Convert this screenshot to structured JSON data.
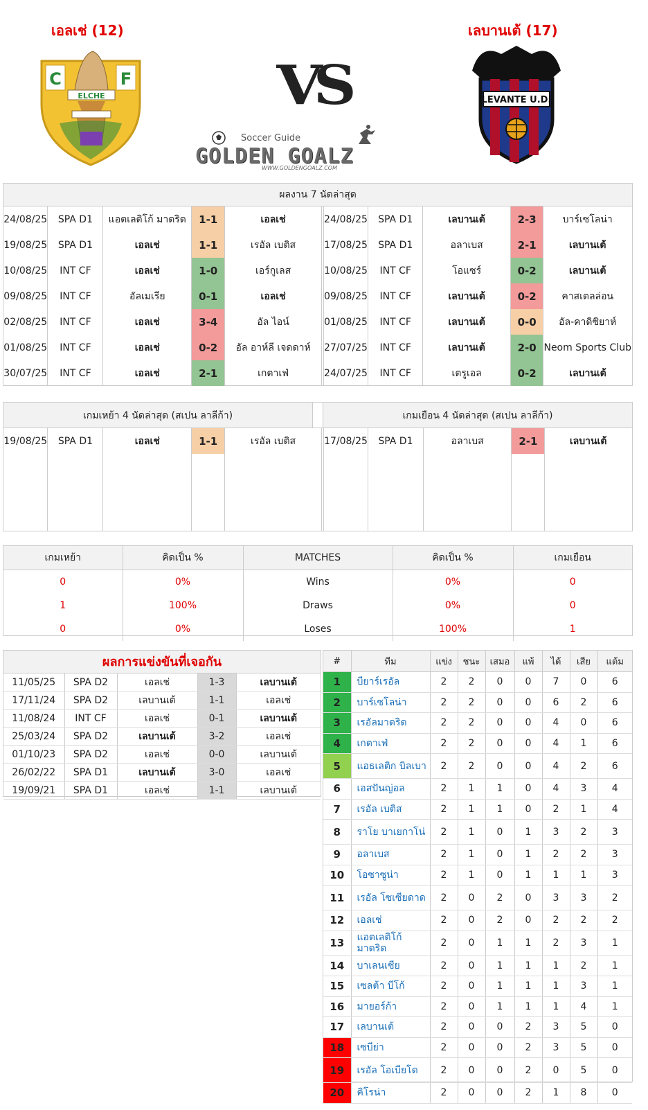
{
  "header": {
    "home_title": "เอลเช่ (12)",
    "away_title": "เลบานเต้ (17)",
    "vs": "VS",
    "brand_top": "Soccer Guide",
    "brand_main": "GOLDEN GOALZ",
    "brand_url": "WWW.GOLDENGOALZ.COM",
    "home_logo_text": "ELCHE",
    "away_logo_text": "LEVANTE U.D."
  },
  "last7": {
    "title": "ผลงาน 7 นัดล่าสุด",
    "home": [
      {
        "date": "24/08/25",
        "comp": "SPA D1",
        "home": "แอตเลติโก้ มาดริด",
        "score": "1-1",
        "away": "เอลเช่",
        "res": "d",
        "hb": false,
        "ab": true
      },
      {
        "date": "19/08/25",
        "comp": "SPA D1",
        "home": "เอลเช่",
        "score": "1-1",
        "away": "เรอัล เบติส",
        "res": "d",
        "hb": true,
        "ab": false
      },
      {
        "date": "10/08/25",
        "comp": "INT CF",
        "home": "เอลเช่",
        "score": "1-0",
        "away": "เอร์กูเลส",
        "res": "w",
        "hb": true,
        "ab": false
      },
      {
        "date": "09/08/25",
        "comp": "INT CF",
        "home": "อัลเมเรีย",
        "score": "0-1",
        "away": "เอลเช่",
        "res": "w",
        "hb": false,
        "ab": true
      },
      {
        "date": "02/08/25",
        "comp": "INT CF",
        "home": "เอลเช่",
        "score": "3-4",
        "away": "อัล ไอน์",
        "res": "l",
        "hb": true,
        "ab": false
      },
      {
        "date": "01/08/25",
        "comp": "INT CF",
        "home": "เอลเช่",
        "score": "0-2",
        "away": "อัล อาห์ลี เจดดาห์",
        "res": "l",
        "hb": true,
        "ab": false
      },
      {
        "date": "30/07/25",
        "comp": "INT CF",
        "home": "เอลเช่",
        "score": "2-1",
        "away": "เกตาเฟ่",
        "res": "w",
        "hb": true,
        "ab": false
      }
    ],
    "away": [
      {
        "date": "24/08/25",
        "comp": "SPA D1",
        "home": "เลบานเต้",
        "score": "2-3",
        "away": "บาร์เซโลน่า",
        "res": "l",
        "hb": true,
        "ab": false
      },
      {
        "date": "17/08/25",
        "comp": "SPA D1",
        "home": "อลาเบส",
        "score": "2-1",
        "away": "เลบานเต้",
        "res": "l",
        "hb": false,
        "ab": true
      },
      {
        "date": "10/08/25",
        "comp": "INT CF",
        "home": "โอแซร์",
        "score": "0-2",
        "away": "เลบานเต้",
        "res": "w",
        "hb": false,
        "ab": true
      },
      {
        "date": "09/08/25",
        "comp": "INT CF",
        "home": "เลบานเต้",
        "score": "0-2",
        "away": "คาสเตลล่อน",
        "res": "l",
        "hb": true,
        "ab": false
      },
      {
        "date": "01/08/25",
        "comp": "INT CF",
        "home": "เลบานเต้",
        "score": "0-0",
        "away": "อัล-คาดิซิยาห์",
        "res": "d",
        "hb": true,
        "ab": false
      },
      {
        "date": "27/07/25",
        "comp": "INT CF",
        "home": "เลบานเต้",
        "score": "2-0",
        "away": "Neom Sports Club",
        "res": "w",
        "hb": true,
        "ab": false
      },
      {
        "date": "24/07/25",
        "comp": "INT CF",
        "home": "เตรูเอล",
        "score": "0-2",
        "away": "เลบานเต้",
        "res": "w",
        "hb": false,
        "ab": true
      }
    ]
  },
  "last4": {
    "home_title": "เกมเหย้า 4 นัดล่าสุด (สเปน ลาลีก้า)",
    "away_title": "เกมเยือน 4 นัดล่าสุด (สเปน ลาลีก้า)",
    "home": [
      {
        "date": "19/08/25",
        "comp": "SPA D1",
        "home": "เอลเช่",
        "score": "1-1",
        "away": "เรอัล เบติส",
        "res": "d",
        "hb": true,
        "ab": false
      }
    ],
    "away": [
      {
        "date": "17/08/25",
        "comp": "SPA D1",
        "home": "อลาเบส",
        "score": "2-1",
        "away": "เลบานเต้",
        "res": "l",
        "hb": false,
        "ab": true
      }
    ]
  },
  "stats": {
    "headers": [
      "เกมเหย้า",
      "คิดเป็น %",
      "MATCHES",
      "คิดเป็น %",
      "เกมเยือน"
    ],
    "rows": [
      {
        "h": "0",
        "hp": "0%",
        "label": "Wins",
        "ap": "0%",
        "a": "0"
      },
      {
        "h": "1",
        "hp": "100%",
        "label": "Draws",
        "ap": "0%",
        "a": "0"
      },
      {
        "h": "0",
        "hp": "0%",
        "label": "Loses",
        "ap": "100%",
        "a": "1"
      }
    ]
  },
  "h2h": {
    "title": "ผลการแข่งขันที่เจอกัน",
    "rows": [
      {
        "date": "11/05/25",
        "comp": "SPA D2",
        "home": "เอลเช่",
        "score": "1-3",
        "away": "เลบานเต้",
        "hb": false,
        "ab": true
      },
      {
        "date": "17/11/24",
        "comp": "SPA D2",
        "home": "เลบานเต้",
        "score": "1-1",
        "away": "เอลเช่",
        "hb": false,
        "ab": false
      },
      {
        "date": "11/08/24",
        "comp": "INT CF",
        "home": "เอลเช่",
        "score": "0-1",
        "away": "เลบานเต้",
        "hb": false,
        "ab": true
      },
      {
        "date": "25/03/24",
        "comp": "SPA D2",
        "home": "เลบานเต้",
        "score": "3-2",
        "away": "เอลเช่",
        "hb": true,
        "ab": false
      },
      {
        "date": "01/10/23",
        "comp": "SPA D2",
        "home": "เอลเช่",
        "score": "0-0",
        "away": "เลบานเต้",
        "hb": false,
        "ab": false
      },
      {
        "date": "26/02/22",
        "comp": "SPA D1",
        "home": "เลบานเต้",
        "score": "3-0",
        "away": "เอลเช่",
        "hb": true,
        "ab": false
      },
      {
        "date": "19/09/21",
        "comp": "SPA D1",
        "home": "เอลเช่",
        "score": "1-1",
        "away": "เลบานเต้",
        "hb": false,
        "ab": false
      }
    ]
  },
  "league": {
    "headers": [
      "#",
      "ทีม",
      "แข่ง",
      "ชนะ",
      "เสมอ",
      "แพ้",
      "ได้",
      "เสีย",
      "แต้ม"
    ],
    "rows": [
      {
        "rank": "1",
        "team": "บียาร์เรอัล",
        "p": "2",
        "w": "2",
        "d": "0",
        "l": "0",
        "gf": "7",
        "ga": "0",
        "pts": "6",
        "zone": "g"
      },
      {
        "rank": "2",
        "team": "บาร์เซโลน่า",
        "p": "2",
        "w": "2",
        "d": "0",
        "l": "0",
        "gf": "6",
        "ga": "2",
        "pts": "6",
        "zone": "g"
      },
      {
        "rank": "3",
        "team": "เรอัลมาดริด",
        "p": "2",
        "w": "2",
        "d": "0",
        "l": "0",
        "gf": "4",
        "ga": "0",
        "pts": "6",
        "zone": "g"
      },
      {
        "rank": "4",
        "team": "เกตาเฟ่",
        "p": "2",
        "w": "2",
        "d": "0",
        "l": "0",
        "gf": "4",
        "ga": "1",
        "pts": "6",
        "zone": "g"
      },
      {
        "rank": "5",
        "team": "แอธเลติก บิลเบา",
        "p": "2",
        "w": "2",
        "d": "0",
        "l": "0",
        "gf": "4",
        "ga": "2",
        "pts": "6",
        "zone": "lg"
      },
      {
        "rank": "6",
        "team": "เอสปันญ่อล",
        "p": "2",
        "w": "1",
        "d": "1",
        "l": "0",
        "gf": "4",
        "ga": "3",
        "pts": "4",
        "zone": ""
      },
      {
        "rank": "7",
        "team": "เรอัล เบติส",
        "p": "2",
        "w": "1",
        "d": "1",
        "l": "0",
        "gf": "2",
        "ga": "1",
        "pts": "4",
        "zone": ""
      },
      {
        "rank": "8",
        "team": "ราโย บาเยกาโน่",
        "p": "2",
        "w": "1",
        "d": "0",
        "l": "1",
        "gf": "3",
        "ga": "2",
        "pts": "3",
        "zone": ""
      },
      {
        "rank": "9",
        "team": "อลาเบส",
        "p": "2",
        "w": "1",
        "d": "0",
        "l": "1",
        "gf": "2",
        "ga": "2",
        "pts": "3",
        "zone": ""
      },
      {
        "rank": "10",
        "team": "โอซาซูน่า",
        "p": "2",
        "w": "1",
        "d": "0",
        "l": "1",
        "gf": "1",
        "ga": "1",
        "pts": "3",
        "zone": ""
      },
      {
        "rank": "11",
        "team": "เรอัล โซเซียดาด",
        "p": "2",
        "w": "0",
        "d": "2",
        "l": "0",
        "gf": "3",
        "ga": "3",
        "pts": "2",
        "zone": ""
      },
      {
        "rank": "12",
        "team": "เอลเช่",
        "p": "2",
        "w": "0",
        "d": "2",
        "l": "0",
        "gf": "2",
        "ga": "2",
        "pts": "2",
        "zone": ""
      },
      {
        "rank": "13",
        "team": "แอตเลติโก้ มาดริด",
        "p": "2",
        "w": "0",
        "d": "1",
        "l": "1",
        "gf": "2",
        "ga": "3",
        "pts": "1",
        "zone": ""
      },
      {
        "rank": "14",
        "team": "บาเลนเซีย",
        "p": "2",
        "w": "0",
        "d": "1",
        "l": "1",
        "gf": "1",
        "ga": "2",
        "pts": "1",
        "zone": ""
      },
      {
        "rank": "15",
        "team": "เซลต้า บีโก้",
        "p": "2",
        "w": "0",
        "d": "1",
        "l": "1",
        "gf": "1",
        "ga": "3",
        "pts": "1",
        "zone": ""
      },
      {
        "rank": "16",
        "team": "มายอร์ก้า",
        "p": "2",
        "w": "0",
        "d": "1",
        "l": "1",
        "gf": "1",
        "ga": "4",
        "pts": "1",
        "zone": ""
      },
      {
        "rank": "17",
        "team": "เลบานเต้",
        "p": "2",
        "w": "0",
        "d": "0",
        "l": "2",
        "gf": "3",
        "ga": "5",
        "pts": "0",
        "zone": ""
      },
      {
        "rank": "18",
        "team": "เซบีย่า",
        "p": "2",
        "w": "0",
        "d": "0",
        "l": "2",
        "gf": "3",
        "ga": "5",
        "pts": "0",
        "zone": "r"
      },
      {
        "rank": "19",
        "team": "เรอัล โอเบียโด",
        "p": "2",
        "w": "0",
        "d": "0",
        "l": "2",
        "gf": "0",
        "ga": "5",
        "pts": "0",
        "zone": "r"
      },
      {
        "rank": "20",
        "team": "คิโรน่า",
        "p": "2",
        "w": "0",
        "d": "0",
        "l": "2",
        "gf": "1",
        "ga": "8",
        "pts": "0",
        "zone": "r"
      }
    ]
  }
}
